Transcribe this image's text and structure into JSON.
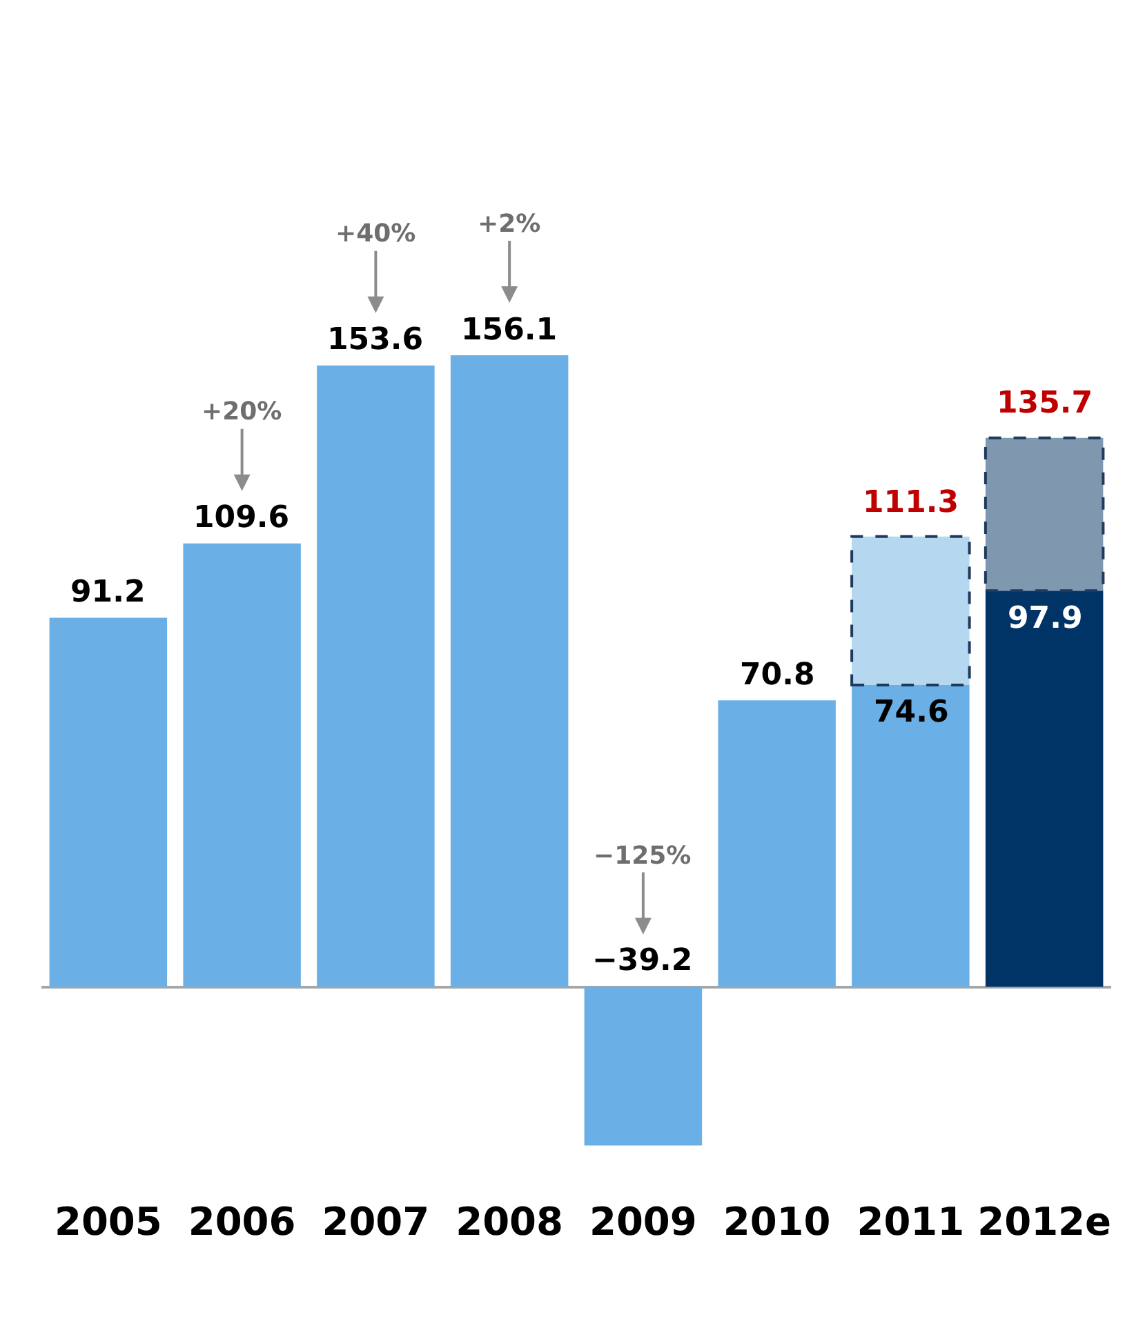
{
  "chart_data": {
    "type": "bar",
    "stacked": true,
    "categories": [
      "2005",
      "2006",
      "2007",
      "2008",
      "2009",
      "2010",
      "2011",
      "2012e"
    ],
    "series": [
      {
        "colors": [
          "#6ab0e6",
          "#6ab0e6",
          "#6ab0e6",
          "#6ab0e6",
          "#6ab0e6",
          "#6ab0e6",
          "#6ab0e6",
          "#003466"
        ],
        "values": [
          91.2,
          109.6,
          153.6,
          156.1,
          -39.2,
          70.8,
          74.6,
          97.9
        ],
        "value_labels": [
          "91.2",
          "109.6",
          "153.6",
          "156.1",
          "−39.2",
          "70.8",
          "74.6",
          "97.9"
        ]
      },
      {
        "colors": [
          "#b5d8f0",
          "#b5d8f0",
          "#b5d8f0",
          "#b5d8f0",
          "#b5d8f0",
          "#b5d8f0",
          "#b5d8f0",
          "#7f98b0"
        ],
        "values": [
          null,
          null,
          null,
          null,
          null,
          null,
          36.7,
          37.8
        ],
        "line_style": "dashed"
      }
    ],
    "totals": [
      null,
      null,
      null,
      null,
      null,
      null,
      "111.3",
      "135.7"
    ],
    "annotations": [
      {
        "text": "+20%",
        "x": "2006",
        "y": 109.6
      },
      {
        "text": "+40%",
        "x": "2007",
        "y": 153.6
      },
      {
        "text": "+2%",
        "x": "2008",
        "y": 156.1
      },
      {
        "text": "−125%",
        "x": "2009",
        "y": 0
      }
    ]
  }
}
